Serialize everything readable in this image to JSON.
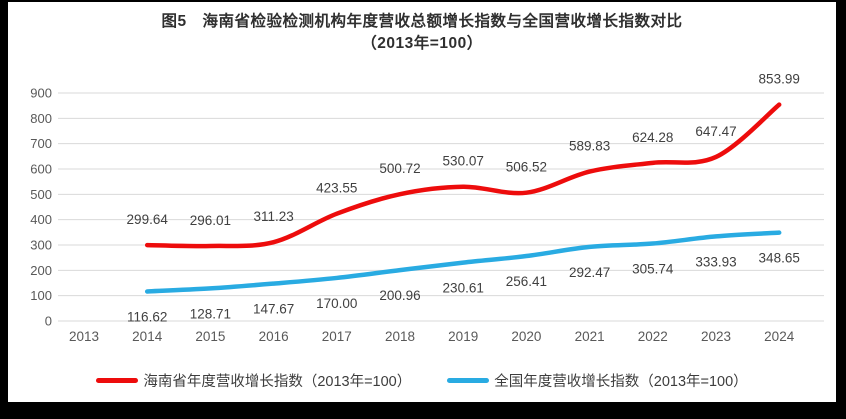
{
  "title": {
    "line1": "图5　海南省检验检测机构年度营收总额增长指数与全国营收增长指数对比",
    "line2": "（2013年=100）"
  },
  "chart_data": {
    "type": "line",
    "categories": [
      "2013",
      "2014",
      "2015",
      "2016",
      "2017",
      "2018",
      "2019",
      "2020",
      "2021",
      "2022",
      "2023",
      "2024"
    ],
    "series": [
      {
        "name": "海南省年度营收增长指数（2013年=100）",
        "color": "#ed0c0c",
        "label_position": "above",
        "values": [
          null,
          299.64,
          296.01,
          311.23,
          423.55,
          500.72,
          530.07,
          506.52,
          589.83,
          624.28,
          647.47,
          853.99
        ],
        "labels": [
          "",
          "299.64",
          "296.01",
          "311.23",
          "423.55",
          "500.72",
          "530.07",
          "506.52",
          "589.83",
          "624.28",
          "647.47",
          "853.99"
        ]
      },
      {
        "name": "全国年度营收增长指数（2013年=100）",
        "color": "#29abe2",
        "label_position": "below",
        "values": [
          null,
          116.62,
          128.71,
          147.67,
          170.0,
          200.96,
          230.61,
          256.41,
          292.47,
          305.74,
          333.93,
          348.65
        ],
        "labels": [
          "",
          "116.62",
          "128.71",
          "147.67",
          "170.00",
          "200.96",
          "230.61",
          "256.41",
          "292.47",
          "305.74",
          "333.93",
          "348.65"
        ]
      }
    ],
    "ylim": [
      0,
      900
    ],
    "ytick_step": 100,
    "grid": true,
    "legend_position": "bottom",
    "colors": {
      "gridline": "#d9d9d9",
      "tick_text": "#595959",
      "data_label_text": "#404040"
    }
  }
}
